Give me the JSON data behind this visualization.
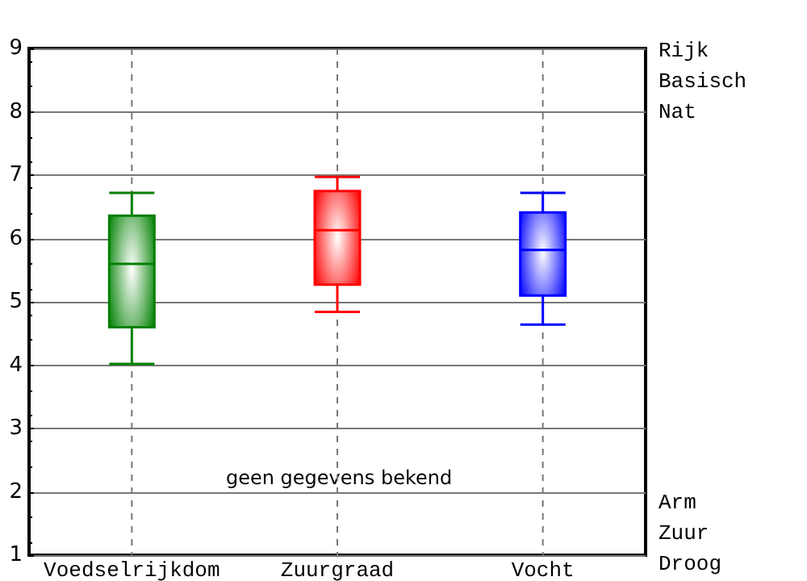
{
  "chart_data": {
    "type": "box",
    "categories": [
      "Voedselrijkdom",
      "Zuurgraad",
      "Vocht"
    ],
    "boxes": [
      {
        "low": 4.02,
        "q1": 4.6,
        "median": 5.6,
        "q3": 6.36,
        "high": 6.72
      },
      {
        "low": 4.84,
        "q1": 5.27,
        "median": 6.13,
        "q3": 6.75,
        "high": 6.97
      },
      {
        "low": 4.64,
        "q1": 5.1,
        "median": 5.82,
        "q3": 6.41,
        "high": 6.72
      }
    ],
    "colors": [
      "#008000",
      "#ff0000",
      "#0000ff"
    ],
    "ylim": [
      1,
      9
    ],
    "yticks": [
      1,
      2,
      3,
      4,
      5,
      6,
      7,
      8,
      9
    ],
    "grid": true,
    "annotations": [
      "geen gegevens bekend",
      "Rijk\nBasisch\nNat",
      "Arm\nZuur\nDroog"
    ]
  }
}
